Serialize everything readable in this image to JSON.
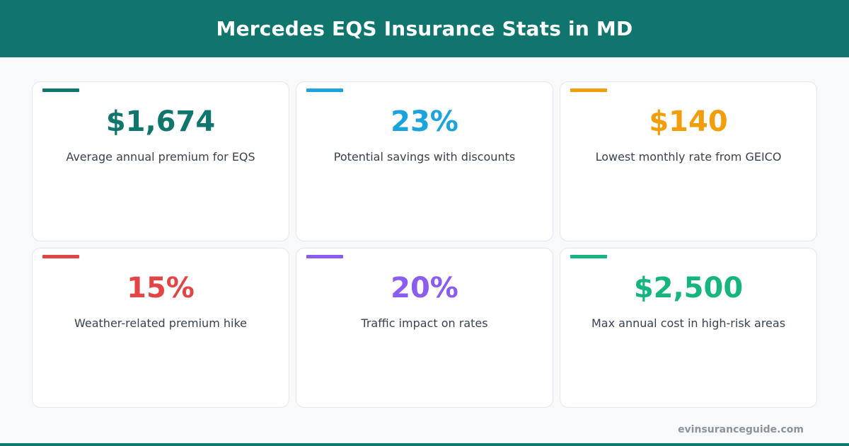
{
  "header": {
    "title": "Mercedes EQS Insurance Stats in MD",
    "bg_color": "#10766d"
  },
  "cards": [
    {
      "value": "$1,674",
      "label": "Average annual premium for EQS",
      "color": "#10766d"
    },
    {
      "value": "23%",
      "label": "Potential savings with discounts",
      "color": "#1aa3dc"
    },
    {
      "value": "$140",
      "label": "Lowest monthly rate from GEICO",
      "color": "#f29d0a"
    },
    {
      "value": "15%",
      "label": "Weather-related premium hike",
      "color": "#e24545"
    },
    {
      "value": "20%",
      "label": "Traffic impact on rates",
      "color": "#8b5cf0"
    },
    {
      "value": "$2,500",
      "label": "Max annual cost in high-risk areas",
      "color": "#16b57f"
    }
  ],
  "footer": {
    "site": "evinsuranceguide.com"
  }
}
